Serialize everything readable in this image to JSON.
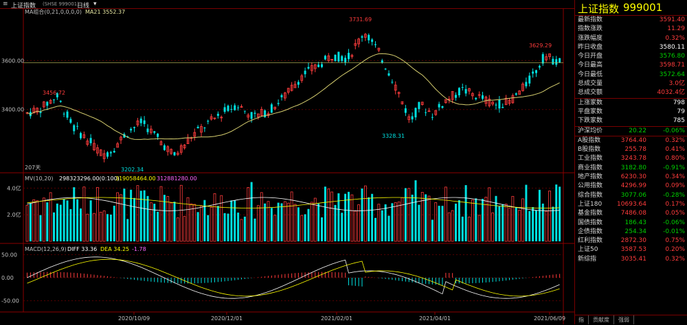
{
  "titlebar": {
    "name": "上证指数",
    "code": "(SHSE 999001)",
    "period": "日线"
  },
  "ma_legend": {
    "label": "MA组合(0,21,0,0,0,0)",
    "ma21": "MA21 3552.37"
  },
  "mv_legend": {
    "label": "MV(10,20)",
    "v1": "298323296.00(0:100)",
    "v2": "319058464.00",
    "v3": "312881280.00"
  },
  "macd_legend": {
    "label": "MACD(12,26,9)",
    "diff": "DIFF 33.36",
    "dea": "DEA 34.25",
    "macd": "-1.78"
  },
  "price_axis": [
    "3600.00",
    "3400.00"
  ],
  "volume_axis": [
    "4.0亿",
    "2.0亿"
  ],
  "macd_axis": [
    "50.00",
    "0.00",
    "-50.00"
  ],
  "dates": [
    "2020/10/09",
    "2020/12/01",
    "2021/02/01",
    "2021/04/01",
    "2021/06/09"
  ],
  "annotations": {
    "high1": "3456.72",
    "low1": "3202.34",
    "peak": "3731.69",
    "low2": "3328.31",
    "high2": "3629.29",
    "days": "207天"
  },
  "chart_data": {
    "type": "candlestick",
    "ylim_price": [
      3150,
      3780
    ],
    "ma21_last": 3552.37,
    "annotations": [
      {
        "label": "3456.72",
        "value": 3456.72
      },
      {
        "label": "3202.34",
        "value": 3202.34
      },
      {
        "label": "3731.69",
        "value": 3731.69
      },
      {
        "label": "3328.31",
        "value": 3328.31
      },
      {
        "label": "3629.29",
        "value": 3629.29
      }
    ],
    "macd": {
      "diff": 33.36,
      "dea": 34.25,
      "macd": -1.78
    }
  },
  "panel": {
    "header": {
      "name": "上证指数",
      "code": "999001"
    },
    "quote": [
      {
        "label": "最新指数",
        "value": "3591.40",
        "cls": "red"
      },
      {
        "label": "指数涨跌",
        "value": "11.29",
        "cls": "red"
      },
      {
        "label": "涨跌幅度",
        "value": "0.32%",
        "cls": "red"
      },
      {
        "label": "昨日收盘",
        "value": "3580.11",
        "cls": "white"
      },
      {
        "label": "今日开盘",
        "value": "3576.80",
        "cls": "green"
      },
      {
        "label": "今日最高",
        "value": "3598.71",
        "cls": "red"
      },
      {
        "label": "今日最低",
        "value": "3572.64",
        "cls": "green"
      },
      {
        "label": "总成交量",
        "value": "3.0亿",
        "cls": "red"
      },
      {
        "label": "总成交额",
        "value": "4032.4亿",
        "cls": "red"
      }
    ],
    "breadth": [
      {
        "label": "上涨家数",
        "value": "798",
        "cls": "white"
      },
      {
        "label": "平盘家数",
        "value": "79",
        "cls": "white"
      },
      {
        "label": "下跌家数",
        "value": "785",
        "cls": "white"
      }
    ],
    "hs": {
      "label": "沪深均价",
      "mid": "20.22",
      "value": "-0.06%"
    },
    "indices": [
      {
        "label": "A股指数",
        "mid": "3764.40",
        "midcls": "red",
        "value": "0.32%",
        "cls": "red"
      },
      {
        "label": "B股指数",
        "mid": "255.78",
        "midcls": "red",
        "value": "0.41%",
        "cls": "red"
      },
      {
        "label": "工业指数",
        "mid": "3243.78",
        "midcls": "red",
        "value": "0.80%",
        "cls": "red"
      },
      {
        "label": "商业指数",
        "mid": "3182.80",
        "midcls": "green",
        "value": "-0.91%",
        "cls": "green"
      },
      {
        "label": "地产指数",
        "mid": "6230.30",
        "midcls": "red",
        "value": "0.34%",
        "cls": "red"
      },
      {
        "label": "公用指数",
        "mid": "4296.99",
        "midcls": "red",
        "value": "0.09%",
        "cls": "red"
      },
      {
        "label": "综合指数",
        "mid": "3077.06",
        "midcls": "green",
        "value": "-0.28%",
        "cls": "green"
      },
      {
        "label": "上证180",
        "mid": "10693.64",
        "midcls": "red",
        "value": "0.17%",
        "cls": "red"
      },
      {
        "label": "基金指数",
        "mid": "7486.08",
        "midcls": "red",
        "value": "0.05%",
        "cls": "red"
      },
      {
        "label": "国债指数",
        "mid": "186.43",
        "midcls": "green",
        "value": "-0.06%",
        "cls": "green"
      },
      {
        "label": "企债指数",
        "mid": "254.34",
        "midcls": "green",
        "value": "-0.01%",
        "cls": "green"
      },
      {
        "label": "红利指数",
        "mid": "2872.30",
        "midcls": "red",
        "value": "0.75%",
        "cls": "red"
      },
      {
        "label": "上证50",
        "mid": "3587.53",
        "midcls": "red",
        "value": "0.20%",
        "cls": "red"
      },
      {
        "label": "新综指",
        "mid": "3035.41",
        "midcls": "red",
        "value": "0.32%",
        "cls": "red"
      }
    ],
    "tabs": [
      "指",
      "贡献度",
      "强弱"
    ]
  }
}
